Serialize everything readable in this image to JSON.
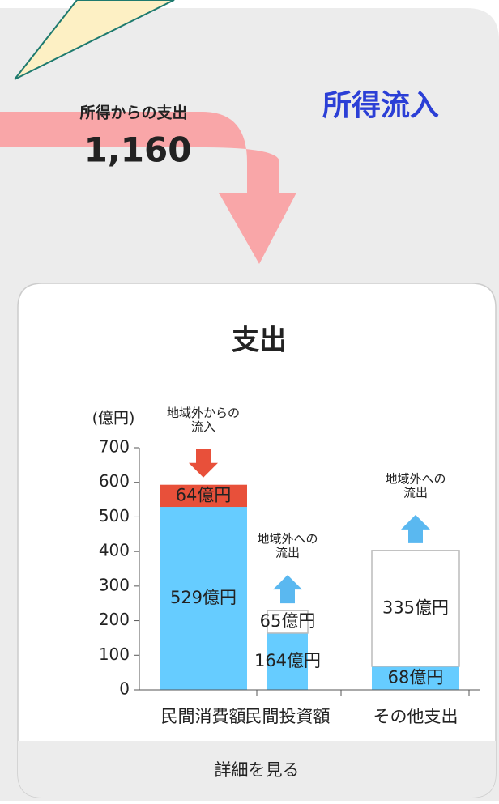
{
  "flow": {
    "label": "所得からの支出",
    "value": "1,160"
  },
  "inflow_title": "所得流入",
  "chart_data": {
    "type": "stacked_bar",
    "title": "支出",
    "y_label": "(億円)",
    "categories": [
      "民間消費額",
      "民間投資額",
      "その他支出"
    ],
    "series": [
      {
        "color": "#66ccff",
        "values": [
          529,
          164,
          68
        ],
        "value_labels": [
          "529億円",
          "164億円",
          "68億円"
        ]
      },
      {
        "colors": [
          "#e8503a",
          "#ffffff",
          "#ffffff"
        ],
        "border": "#bbbbbb",
        "values": [
          64,
          65,
          335
        ],
        "value_labels": [
          "64億円",
          "65億円",
          "335億円"
        ]
      }
    ],
    "annotations": [
      {
        "lines": [
          "地域外からの",
          "流入"
        ],
        "category": 0,
        "direction": "down",
        "color": "#e8503a"
      },
      {
        "lines": [
          "地域外への",
          "流出"
        ],
        "category": 1,
        "direction": "up",
        "color": "#5ab8f0"
      },
      {
        "lines": [
          "地域外への",
          "流出"
        ],
        "category": 2,
        "direction": "up",
        "color": "#5ab8f0"
      }
    ],
    "ylim": [
      0,
      700
    ],
    "yticks": [
      0,
      100,
      200,
      300,
      400,
      500,
      600,
      700
    ]
  },
  "footer_button": "詳細を見る"
}
